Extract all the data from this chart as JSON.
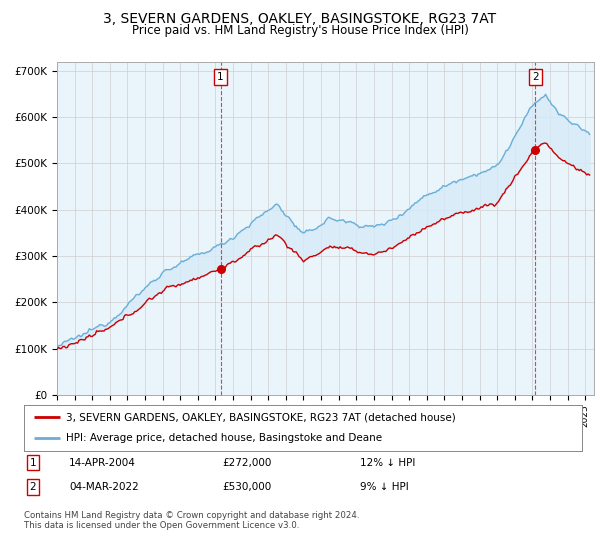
{
  "title": "3, SEVERN GARDENS, OAKLEY, BASINGSTOKE, RG23 7AT",
  "subtitle": "Price paid vs. HM Land Registry's House Price Index (HPI)",
  "title_fontsize": 10,
  "subtitle_fontsize": 8.5,
  "ylabel_ticks": [
    "£0",
    "£100K",
    "£200K",
    "£300K",
    "£400K",
    "£500K",
    "£600K",
    "£700K"
  ],
  "ytick_values": [
    0,
    100000,
    200000,
    300000,
    400000,
    500000,
    600000,
    700000
  ],
  "ylim": [
    0,
    720000
  ],
  "xlim_start": 1995.0,
  "xlim_end": 2025.5,
  "sale1_x": 2004.29,
  "sale1_y": 272000,
  "sale2_x": 2022.17,
  "sale2_y": 530000,
  "legend_label_red": "3, SEVERN GARDENS, OAKLEY, BASINGSTOKE, RG23 7AT (detached house)",
  "legend_label_blue": "HPI: Average price, detached house, Basingstoke and Deane",
  "table_row1_num": "1",
  "table_row1_date": "14-APR-2004",
  "table_row1_price": "£272,000",
  "table_row1_hpi": "12% ↓ HPI",
  "table_row2_num": "2",
  "table_row2_date": "04-MAR-2022",
  "table_row2_price": "£530,000",
  "table_row2_hpi": "9% ↓ HPI",
  "footer": "Contains HM Land Registry data © Crown copyright and database right 2024.\nThis data is licensed under the Open Government Licence v3.0.",
  "red_color": "#cc0000",
  "blue_color": "#6aaed6",
  "fill_color": "#d6eaf8",
  "background_color": "#ffffff",
  "chart_bg_color": "#eaf4fb",
  "grid_color": "#cccccc"
}
